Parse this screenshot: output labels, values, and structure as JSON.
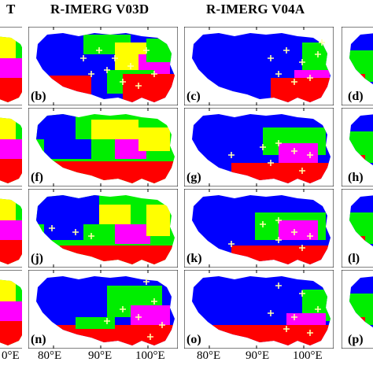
{
  "headers": {
    "col1_partial": "T",
    "col2": "R-IMERG V03D",
    "col3": "R-IMERG V04A"
  },
  "panel_labels": [
    [
      "",
      "(b)",
      "(c)",
      "(d)"
    ],
    [
      "",
      "(f)",
      "(g)",
      "(h)"
    ],
    [
      "",
      "(j)",
      "(k)",
      "(l)"
    ],
    [
      "",
      "(n)",
      "(o)",
      "(p)"
    ]
  ],
  "x_ticks": {
    "col1": [
      "0°E"
    ],
    "col2": [
      "80°E",
      "90°E",
      "100°E"
    ],
    "col3": [
      "80°E",
      "90°E",
      "100°E"
    ]
  },
  "legend_colors": {
    "blue": "#0000ff",
    "green": "#00ee00",
    "yellow": "#ffff00",
    "magenta": "#ff00ff",
    "red": "#ff0000",
    "marker": "#ffffff"
  }
}
